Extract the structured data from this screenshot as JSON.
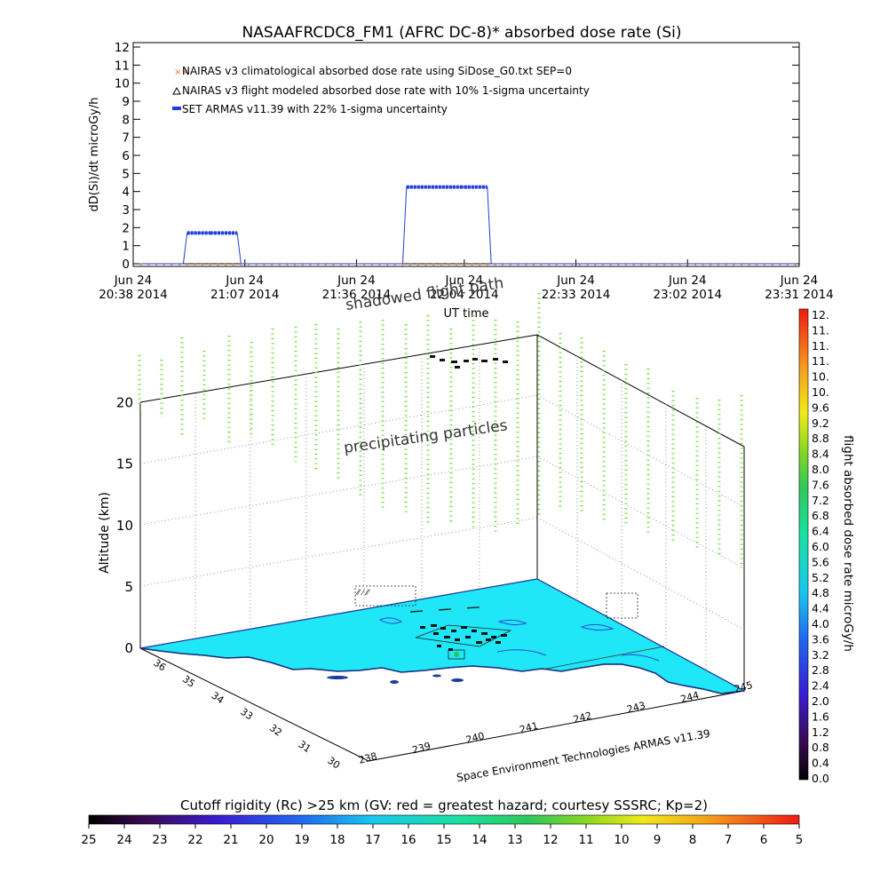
{
  "chart_data": [
    {
      "type": "line",
      "title": "NASAAFRCDC8_FM1 (AFRC DC-8)* absorbed dose rate (Si)",
      "xlabel": "UT time",
      "ylabel": "dD(Si)/dt microGy/h",
      "ylim": [
        0,
        12
      ],
      "yticks": [
        "0",
        "1",
        "2",
        "3",
        "4",
        "5",
        "6",
        "7",
        "8",
        "9",
        "10",
        "11",
        "12"
      ],
      "xlim_minutes": [
        1238,
        1411
      ],
      "xticks": [
        {
          "line1": "Jun 24",
          "line2": "20:38 2014",
          "minute": 1238
        },
        {
          "line1": "Jun 24",
          "line2": "21:07 2014",
          "minute": 1267
        },
        {
          "line1": "Jun 24",
          "line2": "21:36 2014",
          "minute": 1296
        },
        {
          "line1": "Jun 24",
          "line2": "22:04 2014",
          "minute": 1324
        },
        {
          "line1": "Jun 24",
          "line2": "22:33 2014",
          "minute": 1353
        },
        {
          "line1": "Jun 24",
          "line2": "23:02 2014",
          "minute": 1382
        },
        {
          "line1": "Jun 24",
          "line2": "23:31 2014",
          "minute": 1411
        }
      ],
      "legend": [
        {
          "label": "NAIRAS v3 climatological absorbed dose rate using SiDose_G0.txt SEP=0",
          "marker": "x",
          "color": "#e8743b"
        },
        {
          "label": "NAIRAS v3 flight modeled absorbed dose rate with 10% 1-sigma uncertainty",
          "marker": "triangle",
          "color": "#000000"
        },
        {
          "label": "SET ARMAS v11.39 with 22% 1-sigma uncertainty",
          "marker": "dot",
          "color": "#1f3fd8"
        }
      ],
      "legend_position": "top-left",
      "series": [
        {
          "name": "SET ARMAS v11.39 with 22% 1-sigma uncertainty",
          "color": "#1f3fd8",
          "x": [
            1240,
            1251,
            1252,
            1258,
            1259,
            1265,
            1266,
            1308,
            1309,
            1323,
            1324,
            1330,
            1331,
            1410
          ],
          "y": [
            0,
            0,
            1.7,
            1.7,
            1.7,
            1.7,
            0,
            0,
            4.25,
            4.25,
            4.25,
            4.25,
            0,
            0
          ]
        }
      ]
    },
    {
      "type": "other",
      "xlabel": "Space Environment Technologies ARMAS v11.39",
      "zlabel": "Altitude (km)",
      "zticks": [
        "0",
        "5",
        "10",
        "15",
        "20"
      ],
      "lon_ticks": [
        "238",
        "239",
        "240",
        "241",
        "242",
        "243",
        "244",
        "245"
      ],
      "lat_ticks": [
        "30",
        "31",
        "32",
        "33",
        "34",
        "35",
        "36"
      ],
      "annotations": [
        "shadowed flight path",
        "precipitating particles"
      ]
    },
    {
      "type": "colorbar",
      "orientation": "vertical",
      "label": "flight absorbed dose rate microGy/h",
      "ticks": [
        "0.0",
        "0.4",
        "0.8",
        "1.2",
        "1.6",
        "2.0",
        "2.4",
        "2.8",
        "3.2",
        "3.6",
        "4.0",
        "4.4",
        "4.8",
        "5.2",
        "5.6",
        "6.0",
        "6.4",
        "6.8",
        "7.2",
        "7.6",
        "8.0",
        "8.4",
        "8.8",
        "9.2",
        "9.6",
        "10.",
        "10.",
        "11.",
        "11.",
        "11.",
        "12."
      ]
    },
    {
      "type": "colorbar",
      "orientation": "horizontal",
      "label": "Cutoff rigidity (Rc) >25 km (GV: red = greatest hazard; courtesy SSSRC; Kp=2)",
      "ticks": [
        "25",
        "24",
        "23",
        "22",
        "21",
        "20",
        "19",
        "18",
        "17",
        "16",
        "15",
        "14",
        "13",
        "12",
        "11",
        "10",
        "9",
        "8",
        "7",
        "6",
        "5"
      ]
    }
  ]
}
